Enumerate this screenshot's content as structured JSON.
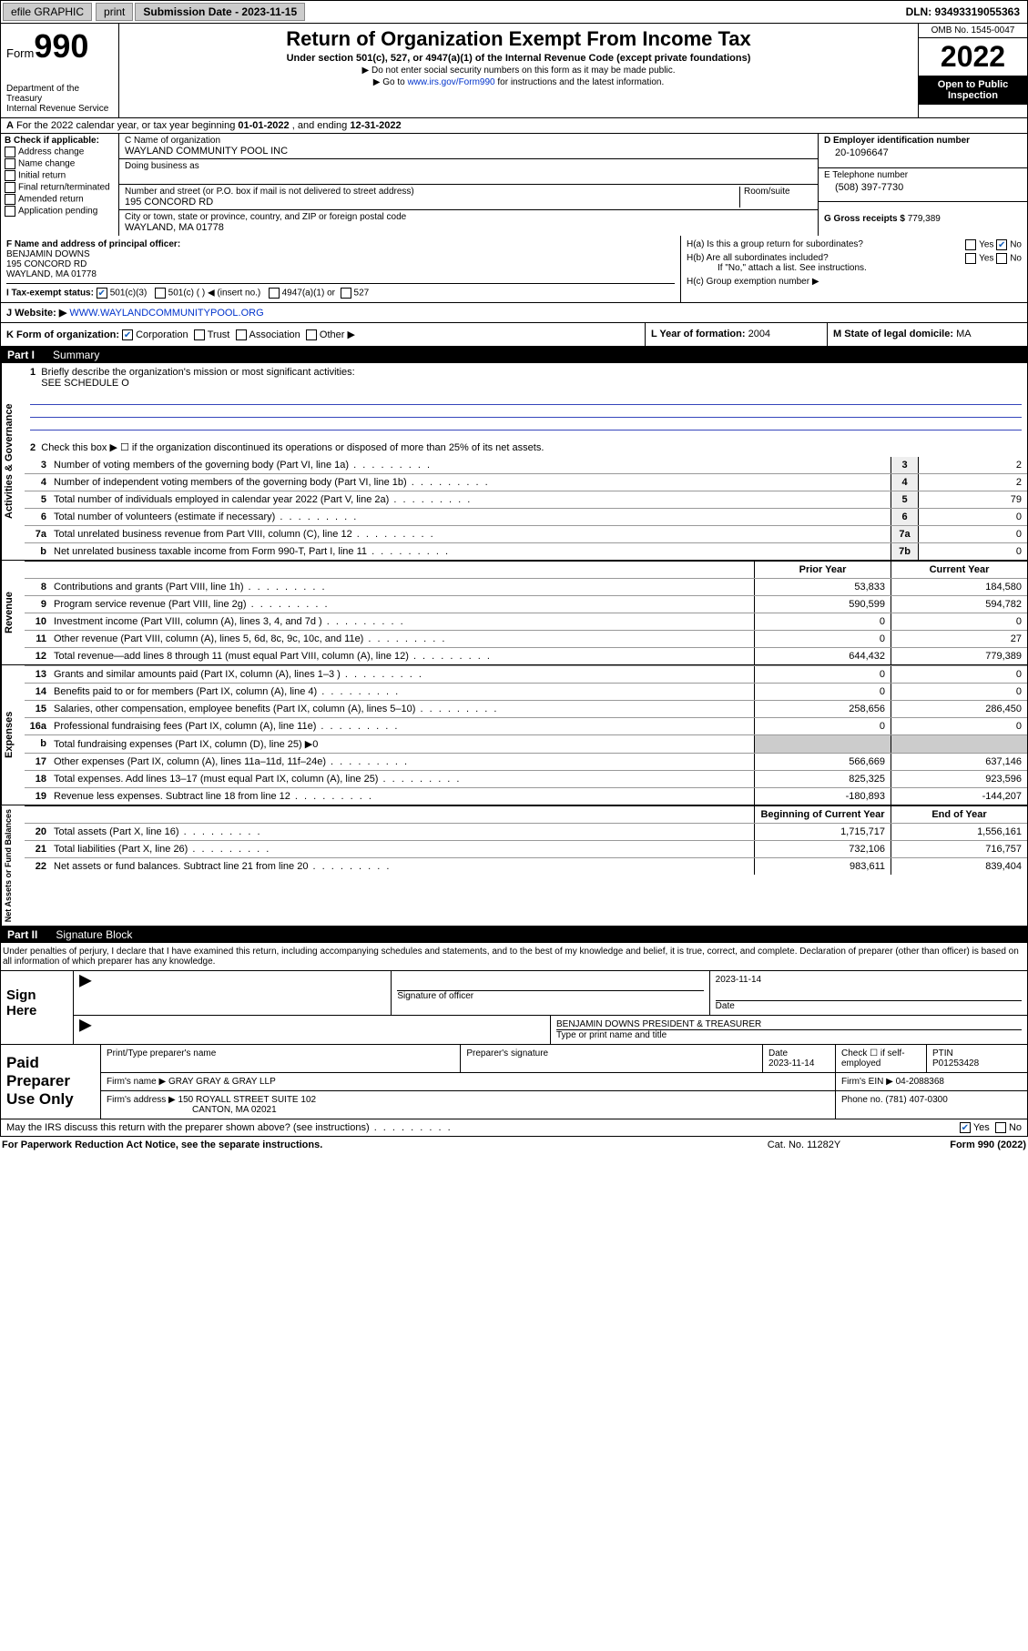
{
  "topbar": {
    "efile": "efile GRAPHIC",
    "print": "print",
    "submission_label": "Submission Date - 2023-11-15",
    "dln": "DLN: 93493319055363"
  },
  "header": {
    "form_prefix": "Form",
    "form_number": "990",
    "dept": "Department of the Treasury",
    "irs": "Internal Revenue Service",
    "title": "Return of Organization Exempt From Income Tax",
    "sub1": "Under section 501(c), 527, or 4947(a)(1) of the Internal Revenue Code (except private foundations)",
    "sub2": "▶ Do not enter social security numbers on this form as it may be made public.",
    "sub3_pre": "▶ Go to ",
    "sub3_link": "www.irs.gov/Form990",
    "sub3_post": " for instructions and the latest information.",
    "omb": "OMB No. 1545-0047",
    "year": "2022",
    "open": "Open to Public Inspection"
  },
  "rowA": {
    "a_label": "A",
    "text_pre": "For the 2022 calendar year, or tax year beginning ",
    "begin": "01-01-2022",
    "mid": " , and ending ",
    "end": "12-31-2022"
  },
  "boxB": {
    "label": "B Check if applicable:",
    "opts": [
      "Address change",
      "Name change",
      "Initial return",
      "Final return/terminated",
      "Amended return",
      "Application pending"
    ]
  },
  "boxC": {
    "name_label": "C Name of organization",
    "name": "WAYLAND COMMUNITY POOL INC",
    "dba_label": "Doing business as",
    "dba": "",
    "street_label": "Number and street (or P.O. box if mail is not delivered to street address)",
    "room_label": "Room/suite",
    "street": "195 CONCORD RD",
    "city_label": "City or town, state or province, country, and ZIP or foreign postal code",
    "city": "WAYLAND, MA  01778"
  },
  "boxD": {
    "label": "D Employer identification number",
    "val": "20-1096647"
  },
  "boxE": {
    "label": "E Telephone number",
    "val": "(508) 397-7730"
  },
  "boxG": {
    "label": "G Gross receipts $",
    "val": "779,389"
  },
  "boxF": {
    "label": "F Name and address of principal officer:",
    "name": "BENJAMIN DOWNS",
    "street": "195 CONCORD RD",
    "city": "WAYLAND, MA  01778"
  },
  "boxH": {
    "ha": "H(a)  Is this a group return for subordinates?",
    "hb": "H(b)  Are all subordinates included?",
    "hb_note": "If \"No,\" attach a list. See instructions.",
    "hc": "H(c)  Group exemption number ▶",
    "yes": "Yes",
    "no": "No"
  },
  "rowI": {
    "label": "I    Tax-exempt status:",
    "o1": "501(c)(3)",
    "o2": "501(c) (  ) ◀ (insert no.)",
    "o3": "4947(a)(1) or",
    "o4": "527"
  },
  "rowJ": {
    "label": "J    Website: ▶",
    "val": "WWW.WAYLANDCOMMUNITYPOOL.ORG"
  },
  "rowK": {
    "label": "K Form of organization:",
    "opts": [
      "Corporation",
      "Trust",
      "Association",
      "Other ▶"
    ],
    "l_label": "L Year of formation:",
    "l_val": "2004",
    "m_label": "M State of legal domicile:",
    "m_val": "MA"
  },
  "part1": {
    "label": "Part I",
    "title": "Summary"
  },
  "summary": {
    "q1": "Briefly describe the organization's mission or most significant activities:",
    "q1_val": "SEE SCHEDULE O",
    "q2": "Check this box ▶ ☐  if the organization discontinued its operations or disposed of more than 25% of its net assets.",
    "sections": [
      {
        "vtab": "Activities & Governance"
      },
      {
        "vtab": "Revenue"
      },
      {
        "vtab": "Expenses"
      },
      {
        "vtab": "Net Assets or Fund Balances"
      }
    ],
    "lines_top": [
      {
        "n": "3",
        "d": "Number of voting members of the governing body (Part VI, line 1a)",
        "box": "3",
        "v": "2"
      },
      {
        "n": "4",
        "d": "Number of independent voting members of the governing body (Part VI, line 1b)",
        "box": "4",
        "v": "2"
      },
      {
        "n": "5",
        "d": "Total number of individuals employed in calendar year 2022 (Part V, line 2a)",
        "box": "5",
        "v": "79"
      },
      {
        "n": "6",
        "d": "Total number of volunteers (estimate if necessary)",
        "box": "6",
        "v": "0"
      },
      {
        "n": "7a",
        "d": "Total unrelated business revenue from Part VIII, column (C), line 12",
        "box": "7a",
        "v": "0"
      },
      {
        "n": "b",
        "d": "Net unrelated business taxable income from Form 990-T, Part I, line 11",
        "box": "7b",
        "v": "0"
      }
    ],
    "col_hdr": {
      "prior": "Prior Year",
      "current": "Current Year"
    },
    "revenue": [
      {
        "n": "8",
        "d": "Contributions and grants (Part VIII, line 1h)",
        "p": "53,833",
        "c": "184,580"
      },
      {
        "n": "9",
        "d": "Program service revenue (Part VIII, line 2g)",
        "p": "590,599",
        "c": "594,782"
      },
      {
        "n": "10",
        "d": "Investment income (Part VIII, column (A), lines 3, 4, and 7d )",
        "p": "0",
        "c": "0"
      },
      {
        "n": "11",
        "d": "Other revenue (Part VIII, column (A), lines 5, 6d, 8c, 9c, 10c, and 11e)",
        "p": "0",
        "c": "27"
      },
      {
        "n": "12",
        "d": "Total revenue—add lines 8 through 11 (must equal Part VIII, column (A), line 12)",
        "p": "644,432",
        "c": "779,389"
      }
    ],
    "expenses": [
      {
        "n": "13",
        "d": "Grants and similar amounts paid (Part IX, column (A), lines 1–3 )",
        "p": "0",
        "c": "0"
      },
      {
        "n": "14",
        "d": "Benefits paid to or for members (Part IX, column (A), line 4)",
        "p": "0",
        "c": "0"
      },
      {
        "n": "15",
        "d": "Salaries, other compensation, employee benefits (Part IX, column (A), lines 5–10)",
        "p": "258,656",
        "c": "286,450"
      },
      {
        "n": "16a",
        "d": "Professional fundraising fees (Part IX, column (A), line 11e)",
        "p": "0",
        "c": "0"
      },
      {
        "n": "b",
        "d": "Total fundraising expenses (Part IX, column (D), line 25) ▶0",
        "p": "",
        "c": ""
      },
      {
        "n": "17",
        "d": "Other expenses (Part IX, column (A), lines 11a–11d, 11f–24e)",
        "p": "566,669",
        "c": "637,146"
      },
      {
        "n": "18",
        "d": "Total expenses. Add lines 13–17 (must equal Part IX, column (A), line 25)",
        "p": "825,325",
        "c": "923,596"
      },
      {
        "n": "19",
        "d": "Revenue less expenses. Subtract line 18 from line 12",
        "p": "-180,893",
        "c": "-144,207"
      }
    ],
    "net_hdr": {
      "beg": "Beginning of Current Year",
      "end": "End of Year"
    },
    "net": [
      {
        "n": "20",
        "d": "Total assets (Part X, line 16)",
        "p": "1,715,717",
        "c": "1,556,161"
      },
      {
        "n": "21",
        "d": "Total liabilities (Part X, line 26)",
        "p": "732,106",
        "c": "716,757"
      },
      {
        "n": "22",
        "d": "Net assets or fund balances. Subtract line 21 from line 20",
        "p": "983,611",
        "c": "839,404"
      }
    ]
  },
  "part2": {
    "label": "Part II",
    "title": "Signature Block"
  },
  "penalties": "Under penalties of perjury, I declare that I have examined this return, including accompanying schedules and statements, and to the best of my knowledge and belief, it is true, correct, and complete. Declaration of preparer (other than officer) is based on all information of which preparer has any knowledge.",
  "sign": {
    "left": "Sign Here",
    "sig_label": "Signature of officer",
    "date_label": "Date",
    "date": "2023-11-14",
    "name": "BENJAMIN DOWNS  PRESIDENT & TREASURER",
    "name_label": "Type or print name and title"
  },
  "prep": {
    "left": "Paid Preparer Use Only",
    "r1": {
      "c1": "Print/Type preparer's name",
      "c2": "Preparer's signature",
      "c3_l": "Date",
      "c3": "2023-11-14",
      "c4": "Check ☐ if self-employed",
      "c5_l": "PTIN",
      "c5": "P01253428"
    },
    "r2": {
      "l": "Firm's name     ▶",
      "v": "GRAY GRAY & GRAY LLP",
      "r_l": "Firm's EIN ▶",
      "r": "04-2088368"
    },
    "r3": {
      "l": "Firm's address ▶",
      "v1": "150 ROYALL STREET SUITE 102",
      "v2": "CANTON, MA  02021",
      "r_l": "Phone no.",
      "r": "(781) 407-0300"
    }
  },
  "may": {
    "text": "May the IRS discuss this return with the preparer shown above? (see instructions)",
    "yes": "Yes",
    "no": "No"
  },
  "footer": {
    "l": "For Paperwork Reduction Act Notice, see the separate instructions.",
    "m": "Cat. No. 11282Y",
    "r": "Form 990 (2022)"
  }
}
